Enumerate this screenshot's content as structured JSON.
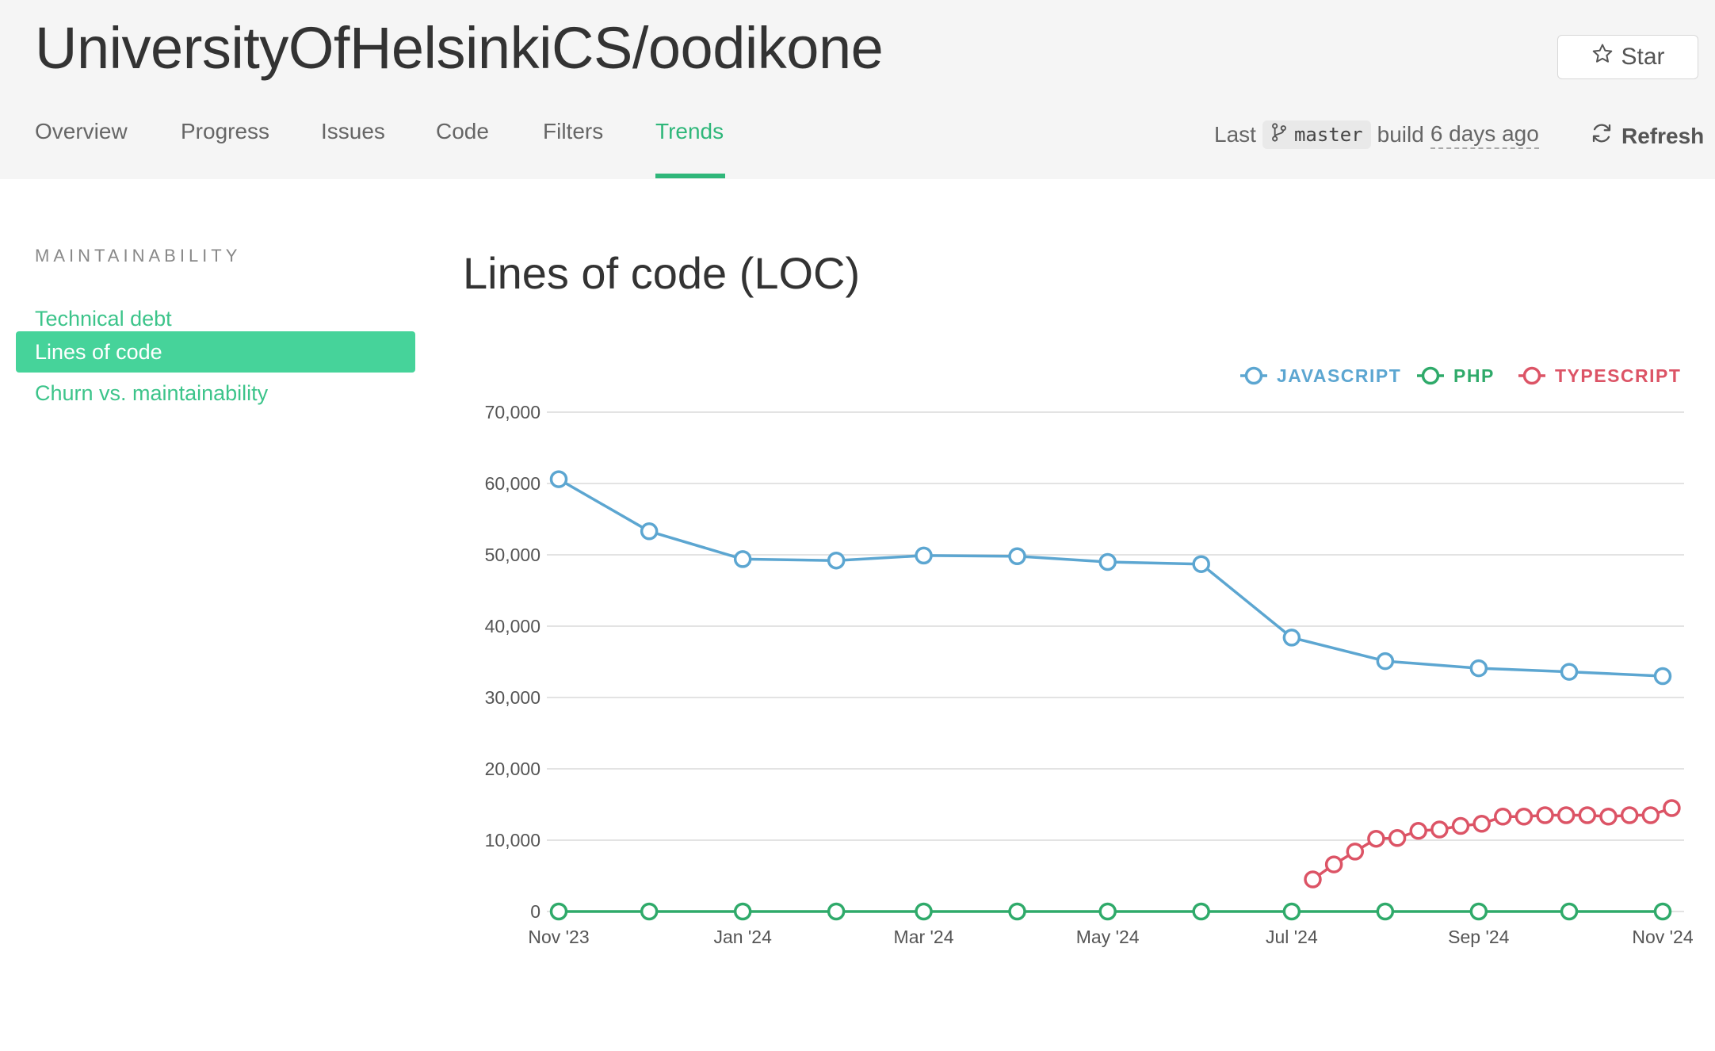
{
  "header": {
    "repo_title": "UniversityOfHelsinkiCS/oodikone",
    "star_label": "Star",
    "tabs": [
      {
        "label": "Overview",
        "active": false
      },
      {
        "label": "Progress",
        "active": false
      },
      {
        "label": "Issues",
        "active": false
      },
      {
        "label": "Code",
        "active": false
      },
      {
        "label": "Filters",
        "active": false
      },
      {
        "label": "Trends",
        "active": true
      }
    ],
    "build": {
      "prefix": "Last",
      "branch": "master",
      "middle": "build",
      "ago": "6 days ago"
    },
    "refresh_label": "Refresh"
  },
  "sidebar": {
    "heading": "MAINTAINABILITY",
    "items": [
      {
        "label": "Technical debt",
        "active": false
      },
      {
        "label": "Lines of code",
        "active": true
      },
      {
        "label": "Churn vs. maintainability",
        "active": false
      }
    ]
  },
  "main": {
    "title": "Lines of code (LOC)"
  },
  "colors": {
    "accent": "#2fb77a",
    "javascript": "#5ca6d1",
    "php": "#2faa6a",
    "typescript": "#dc5466"
  },
  "chart_data": {
    "type": "line",
    "x_label_ticks": [
      "Nov '23",
      "Jan '24",
      "Mar '24",
      "May '24",
      "Jul '24",
      "Sep '24",
      "Nov '24"
    ],
    "y_ticks": [
      "0",
      "10,000",
      "20,000",
      "30,000",
      "40,000",
      "50,000",
      "60,000",
      "70,000"
    ],
    "ylim": [
      0,
      70000
    ],
    "grid": true,
    "legend_position": "top-right",
    "series": [
      {
        "name": "JAVASCRIPT",
        "color": "#5ca6d1",
        "points": [
          {
            "x": "2023-11-01",
            "y": 60600
          },
          {
            "x": "2023-12-01",
            "y": 53300
          },
          {
            "x": "2024-01-01",
            "y": 49400
          },
          {
            "x": "2024-02-01",
            "y": 49200
          },
          {
            "x": "2024-03-01",
            "y": 49900
          },
          {
            "x": "2024-04-01",
            "y": 49800
          },
          {
            "x": "2024-05-01",
            "y": 49000
          },
          {
            "x": "2024-06-01",
            "y": 48700
          },
          {
            "x": "2024-07-01",
            "y": 38400
          },
          {
            "x": "2024-08-01",
            "y": 35100
          },
          {
            "x": "2024-09-01",
            "y": 34100
          },
          {
            "x": "2024-10-01",
            "y": 33600
          },
          {
            "x": "2024-11-01",
            "y": 33000
          }
        ]
      },
      {
        "name": "PHP",
        "color": "#2faa6a",
        "points": [
          {
            "x": "2023-11-01",
            "y": 0
          },
          {
            "x": "2023-12-01",
            "y": 0
          },
          {
            "x": "2024-01-01",
            "y": 0
          },
          {
            "x": "2024-02-01",
            "y": 0
          },
          {
            "x": "2024-03-01",
            "y": 0
          },
          {
            "x": "2024-04-01",
            "y": 0
          },
          {
            "x": "2024-05-01",
            "y": 0
          },
          {
            "x": "2024-06-01",
            "y": 0
          },
          {
            "x": "2024-07-01",
            "y": 0
          },
          {
            "x": "2024-08-01",
            "y": 0
          },
          {
            "x": "2024-09-01",
            "y": 0
          },
          {
            "x": "2024-10-01",
            "y": 0
          },
          {
            "x": "2024-11-01",
            "y": 0
          }
        ]
      },
      {
        "name": "TYPESCRIPT",
        "color": "#dc5466",
        "points": [
          {
            "x": "2024-07-08",
            "y": 4500
          },
          {
            "x": "2024-07-15",
            "y": 6600
          },
          {
            "x": "2024-07-22",
            "y": 8400
          },
          {
            "x": "2024-07-29",
            "y": 10200
          },
          {
            "x": "2024-08-05",
            "y": 10300
          },
          {
            "x": "2024-08-12",
            "y": 11300
          },
          {
            "x": "2024-08-19",
            "y": 11500
          },
          {
            "x": "2024-08-26",
            "y": 12000
          },
          {
            "x": "2024-09-02",
            "y": 12300
          },
          {
            "x": "2024-09-09",
            "y": 13300
          },
          {
            "x": "2024-09-16",
            "y": 13300
          },
          {
            "x": "2024-09-23",
            "y": 13500
          },
          {
            "x": "2024-09-30",
            "y": 13500
          },
          {
            "x": "2024-10-07",
            "y": 13500
          },
          {
            "x": "2024-10-14",
            "y": 13300
          },
          {
            "x": "2024-10-21",
            "y": 13500
          },
          {
            "x": "2024-10-28",
            "y": 13500
          },
          {
            "x": "2024-11-04",
            "y": 14500
          }
        ]
      }
    ]
  }
}
